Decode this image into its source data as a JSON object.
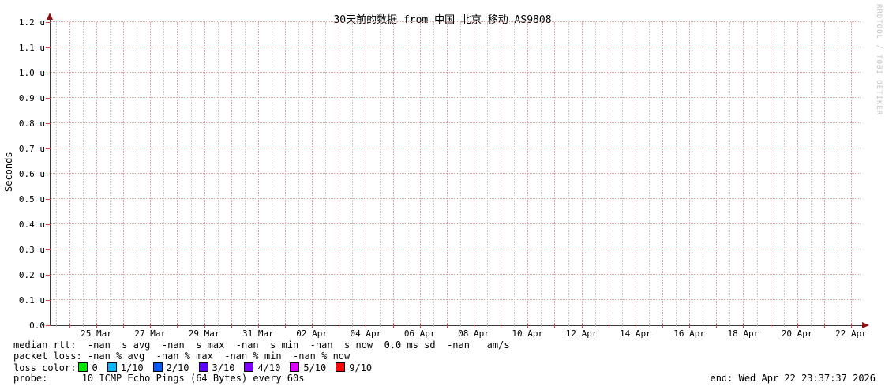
{
  "title": "30天前的数据 from 中国 北京 移动 AS9808",
  "watermark": "RRDTOOL / TOBI OETIKER",
  "chart_data": {
    "type": "line",
    "title": "30天前的数据 from 中国 北京 移动 AS9808",
    "xlabel": "",
    "ylabel": "Seconds",
    "ylim": [
      0,
      1.2e-06
    ],
    "y_ticks": [
      "1.2 u",
      "1.1 u",
      "1.0 u",
      "0.9 u",
      "0.8 u",
      "0.7 u",
      "0.6 u",
      "0.5 u",
      "0.4 u",
      "0.3 u",
      "0.2 u",
      "0.1 u",
      "0.0"
    ],
    "x_ticks": [
      "25 Mar",
      "27 Mar",
      "29 Mar",
      "31 Mar",
      "02 Apr",
      "04 Apr",
      "06 Apr",
      "08 Apr",
      "10 Apr",
      "12 Apr",
      "14 Apr",
      "16 Apr",
      "18 Apr",
      "20 Apr",
      "22 Apr"
    ],
    "series": [
      {
        "name": "median rtt",
        "values": []
      },
      {
        "name": "packet loss",
        "values": []
      }
    ],
    "grid": {
      "on": true,
      "h_major_step": "0.1 u",
      "v_major_step": "1 day",
      "v_minor_step": "12 h",
      "major_color": "#e39e9e",
      "minor_color": "#c9c9c9"
    },
    "axis_color": "#3a3a3a",
    "arrow_color": "#8b1010"
  },
  "legend": {
    "median_rtt": "median rtt:  -nan  s avg  -nan  s max  -nan  s min  -nan  s now  0.0 ms sd  -nan   am/s",
    "packet_loss": "packet loss: -nan % avg  -nan % max  -nan % min  -nan % now",
    "loss_color_label": "loss color:",
    "loss_colors": [
      {
        "label": "0",
        "color": "#00e600"
      },
      {
        "label": "1/10",
        "color": "#00b8ff"
      },
      {
        "label": "2/10",
        "color": "#0059ff"
      },
      {
        "label": "3/10",
        "color": "#5e00ff"
      },
      {
        "label": "4/10",
        "color": "#7e00ff"
      },
      {
        "label": "5/10",
        "color": "#dd00ff"
      },
      {
        "label": "9/10",
        "color": "#ff0000"
      }
    ],
    "probe": "probe:      10 ICMP Echo Pings (64 Bytes) every 60s",
    "end": "end: Wed Apr 22 23:37:37 2026"
  }
}
